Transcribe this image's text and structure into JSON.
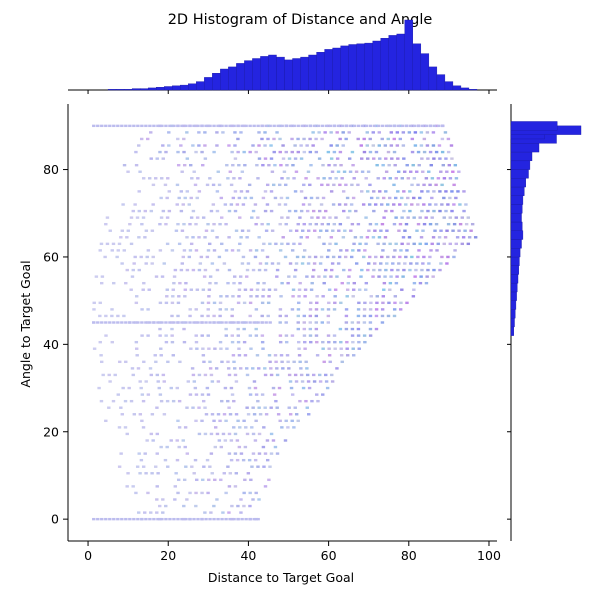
{
  "chart_data": {
    "type": "heatmap",
    "title": "2D Histogram of Distance and Angle",
    "xlabel": "Distance to Target Goal",
    "ylabel": "Angle to Target Goal",
    "xlim": [
      -5,
      102
    ],
    "ylim": [
      -5,
      95
    ],
    "xticks": [
      0,
      20,
      40,
      60,
      80,
      100
    ],
    "yticks": [
      0,
      20,
      40,
      60,
      80
    ],
    "grid": false,
    "legend": "none",
    "colors": {
      "marginal_bars": "#2424e0",
      "marginal_edge": "#1a1aa8",
      "cell_low": "#cdcdf0",
      "cell_high": "#8a8ae6"
    },
    "description_of_support": "Distance roughly 0-97, angle 0-90; widest distance span near angle 65.",
    "distance_marginal": {
      "bin_width": 1,
      "counts_relative": [
        [
          6,
          0.01
        ],
        [
          8,
          0.01
        ],
        [
          10,
          0.01
        ],
        [
          12,
          0.02
        ],
        [
          14,
          0.02
        ],
        [
          16,
          0.03
        ],
        [
          18,
          0.04
        ],
        [
          20,
          0.05
        ],
        [
          22,
          0.06
        ],
        [
          24,
          0.07
        ],
        [
          26,
          0.09
        ],
        [
          28,
          0.12
        ],
        [
          30,
          0.18
        ],
        [
          32,
          0.24
        ],
        [
          34,
          0.3
        ],
        [
          36,
          0.33
        ],
        [
          38,
          0.38
        ],
        [
          40,
          0.42
        ],
        [
          42,
          0.45
        ],
        [
          44,
          0.48
        ],
        [
          46,
          0.5
        ],
        [
          48,
          0.47
        ],
        [
          50,
          0.43
        ],
        [
          52,
          0.45
        ],
        [
          54,
          0.47
        ],
        [
          56,
          0.5
        ],
        [
          58,
          0.54
        ],
        [
          60,
          0.58
        ],
        [
          62,
          0.6
        ],
        [
          64,
          0.63
        ],
        [
          66,
          0.65
        ],
        [
          68,
          0.66
        ],
        [
          70,
          0.67
        ],
        [
          72,
          0.7
        ],
        [
          74,
          0.74
        ],
        [
          76,
          0.78
        ],
        [
          78,
          0.8
        ],
        [
          80,
          1.0
        ],
        [
          82,
          0.66
        ],
        [
          84,
          0.52
        ],
        [
          86,
          0.33
        ],
        [
          88,
          0.22
        ],
        [
          90,
          0.12
        ],
        [
          92,
          0.06
        ],
        [
          94,
          0.03
        ],
        [
          96,
          0.01
        ]
      ]
    },
    "angle_marginal": {
      "bin_width": 1,
      "counts_relative": [
        [
          43,
          0.04
        ],
        [
          45,
          0.05
        ],
        [
          47,
          0.06
        ],
        [
          49,
          0.07
        ],
        [
          51,
          0.08
        ],
        [
          53,
          0.09
        ],
        [
          55,
          0.1
        ],
        [
          57,
          0.11
        ],
        [
          59,
          0.12
        ],
        [
          61,
          0.13
        ],
        [
          63,
          0.15
        ],
        [
          65,
          0.17
        ],
        [
          67,
          0.16
        ],
        [
          69,
          0.15
        ],
        [
          71,
          0.16
        ],
        [
          73,
          0.17
        ],
        [
          75,
          0.19
        ],
        [
          77,
          0.21
        ],
        [
          79,
          0.25
        ],
        [
          81,
          0.27
        ],
        [
          83,
          0.3
        ],
        [
          85,
          0.4
        ],
        [
          87,
          0.65
        ],
        [
          88,
          0.48
        ],
        [
          89,
          1.0
        ],
        [
          90,
          0.66
        ]
      ]
    }
  }
}
